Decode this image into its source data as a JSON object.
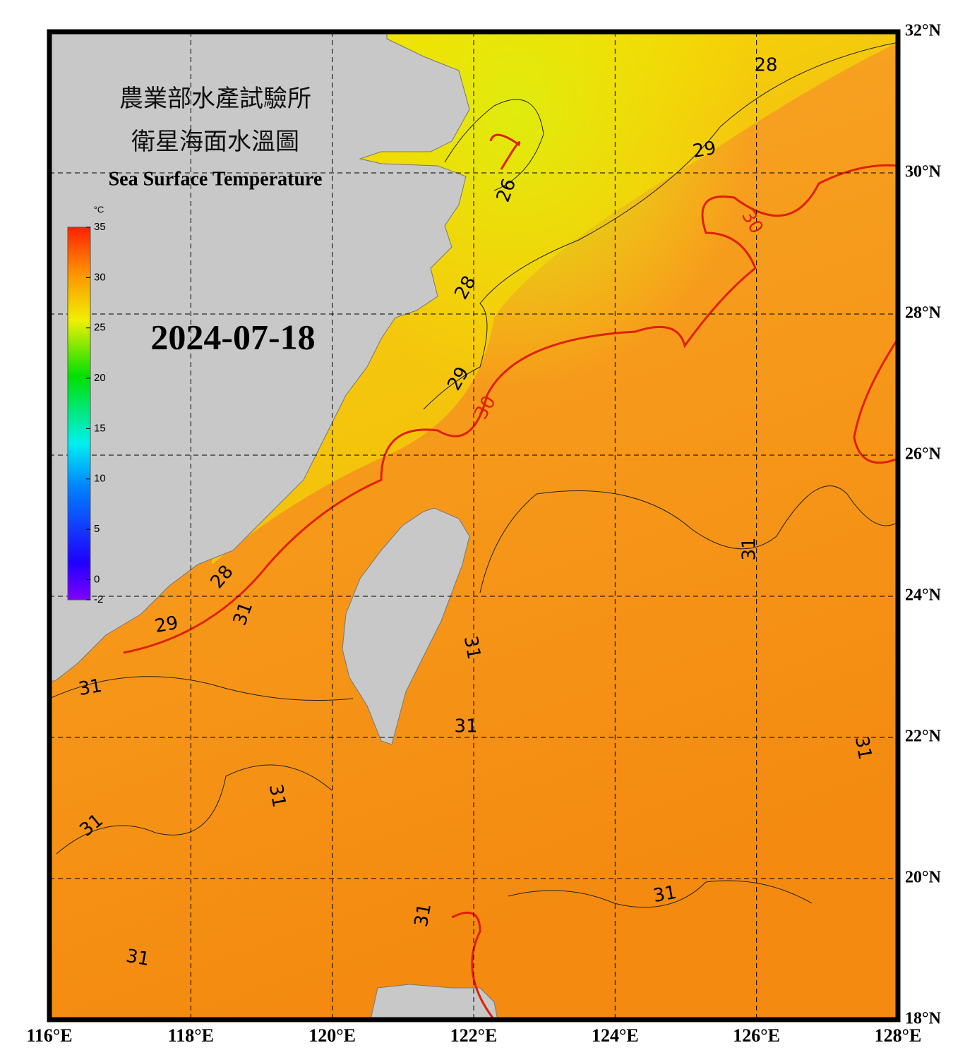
{
  "header": {
    "title_zh_1": "農業部水產試驗所",
    "title_zh_2": "衛星海面水溫圖",
    "title_en": "Sea Surface Temperature",
    "date": "2024-07-18"
  },
  "colorbar": {
    "unit": "°C",
    "ticks": [
      35,
      30,
      25,
      20,
      15,
      10,
      5,
      0,
      -2
    ],
    "range": [
      -2,
      35
    ]
  },
  "map": {
    "lonlim": [
      116,
      128
    ],
    "latlim": [
      18,
      32
    ],
    "lon_ticks": [
      {
        "value": 116,
        "label": "116°E"
      },
      {
        "value": 118,
        "label": "118°E"
      },
      {
        "value": 120,
        "label": "120°E"
      },
      {
        "value": 122,
        "label": "122°E"
      },
      {
        "value": 124,
        "label": "124°E"
      },
      {
        "value": 126,
        "label": "126°E"
      },
      {
        "value": 128,
        "label": "128°E"
      }
    ],
    "lat_ticks": [
      {
        "value": 32,
        "label": "32°N"
      },
      {
        "value": 30,
        "label": "30°N"
      },
      {
        "value": 28,
        "label": "28°N"
      },
      {
        "value": 26,
        "label": "26°N"
      },
      {
        "value": 24,
        "label": "24°N"
      },
      {
        "value": 22,
        "label": "22°N"
      },
      {
        "value": 20,
        "label": "20°N"
      },
      {
        "value": 18,
        "label": "18°N"
      }
    ],
    "contour_labels": [
      "28",
      "29",
      "26",
      "30",
      "28",
      "29",
      "30",
      "31",
      "28",
      "29",
      "31",
      "31",
      "31",
      "31",
      "31",
      "31",
      "31",
      "31",
      "31",
      "31"
    ]
  }
}
